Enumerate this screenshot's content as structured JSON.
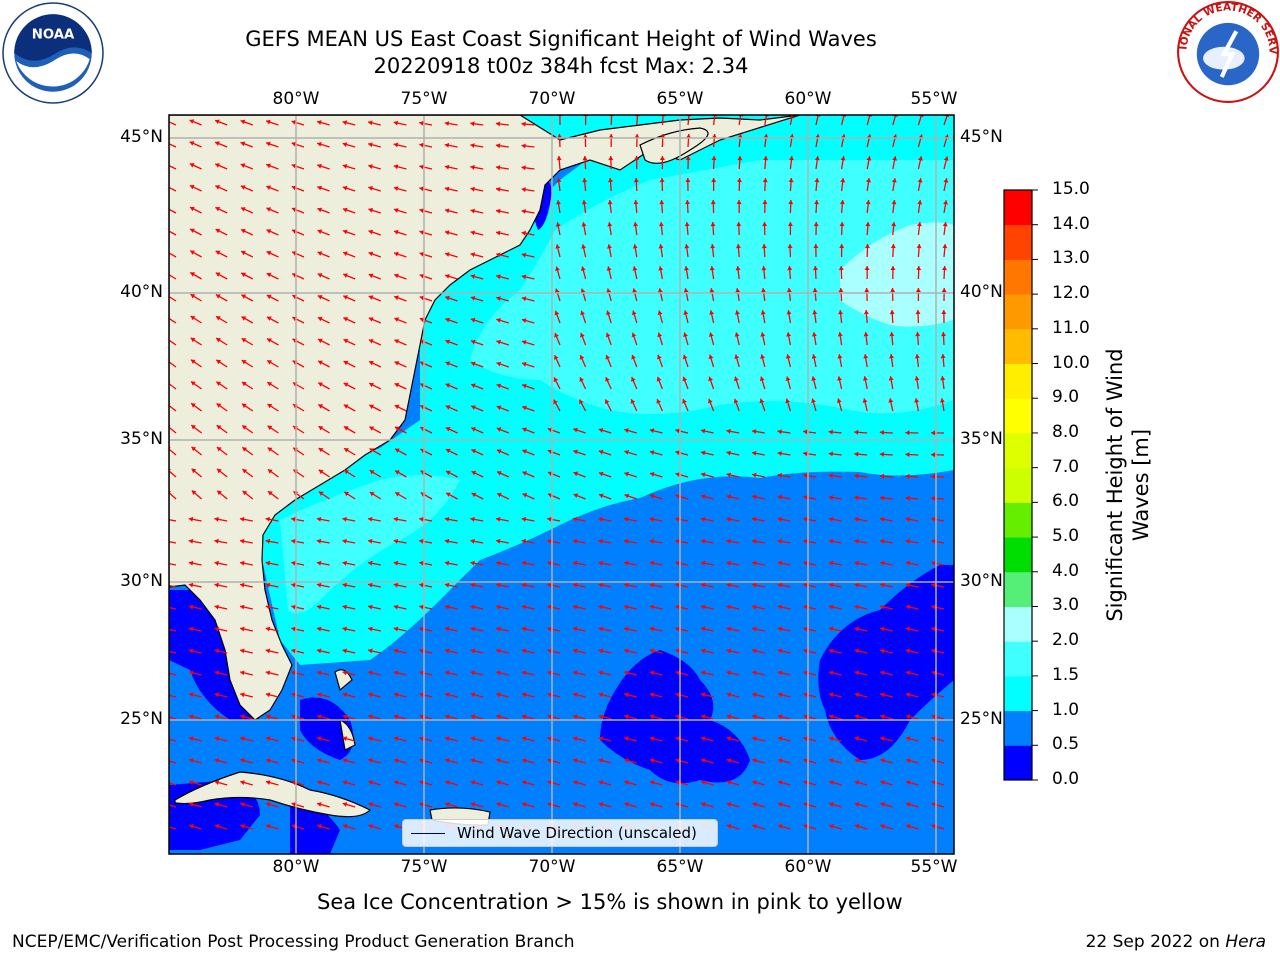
{
  "header": {
    "title_line1": "GEFS MEAN US East Coast Significant Height of Wind Waves",
    "title_line2": "20220918 t00z 384h fcst   Max: 2.34"
  },
  "logos": {
    "left": {
      "name": "noaa-logo",
      "text": "NOAA"
    },
    "right": {
      "name": "national-weather-service-logo",
      "text": "NATIONAL WEATHER SERVICE"
    }
  },
  "map": {
    "lon_labels": [
      "80°W",
      "75°W",
      "70°W",
      "65°W",
      "60°W",
      "55°W"
    ],
    "lat_labels": [
      "45°N",
      "40°N",
      "35°N",
      "30°N",
      "25°N"
    ],
    "extent": {
      "lon_min": -85,
      "lon_max": -54.3,
      "lat_min": 20.4,
      "lat_max": 46
    },
    "colors": {
      "land": "#eeeedd",
      "coast": "#000000",
      "grid": "#b0b0b0",
      "arrow": "#ff0000"
    },
    "legend_label": "Wind Wave Direction (unscaled)"
  },
  "colorbar": {
    "label": "Significant Height of Wind Waves [m]",
    "ticks": [
      "15.0",
      "14.0",
      "13.0",
      "12.0",
      "11.0",
      "10.0",
      "9.0",
      "8.0",
      "7.0",
      "6.0",
      "5.0",
      "4.0",
      "3.0",
      "2.0",
      "1.5",
      "1.0",
      "0.5",
      "0.0"
    ],
    "bands": [
      {
        "range": "0.0-0.5",
        "color": "#0000ff"
      },
      {
        "range": "0.5-1.0",
        "color": "#0080ff"
      },
      {
        "range": "1.0-1.5",
        "color": "#00ffff"
      },
      {
        "range": "1.5-2.0",
        "color": "#40ffff"
      },
      {
        "range": "2.0-3.0",
        "color": "#aaffff"
      },
      {
        "range": "3.0-4.0",
        "color": "#55ee77"
      },
      {
        "range": "4.0-5.0",
        "color": "#00dd00"
      },
      {
        "range": "5.0-6.0",
        "color": "#66ee00"
      },
      {
        "range": "6.0-7.0",
        "color": "#ccff00"
      },
      {
        "range": "7.0-8.0",
        "color": "#ddff00"
      },
      {
        "range": "8.0-9.0",
        "color": "#ffff00"
      },
      {
        "range": "9.0-10.0",
        "color": "#ffee00"
      },
      {
        "range": "10.0-11.0",
        "color": "#ffbb00"
      },
      {
        "range": "11.0-12.0",
        "color": "#ff9900"
      },
      {
        "range": "12.0-13.0",
        "color": "#ff7700"
      },
      {
        "range": "13.0-14.0",
        "color": "#ff4400"
      },
      {
        "range": "14.0-15.0",
        "color": "#ff0000"
      }
    ]
  },
  "notes": {
    "ice": "Sea Ice Concentration > 15% is shown in pink to yellow",
    "footer_left": "NCEP/EMC/Verification Post Processing Product Generation Branch",
    "footer_date": "22 Sep 2022 on ",
    "footer_machine": "Hera"
  }
}
